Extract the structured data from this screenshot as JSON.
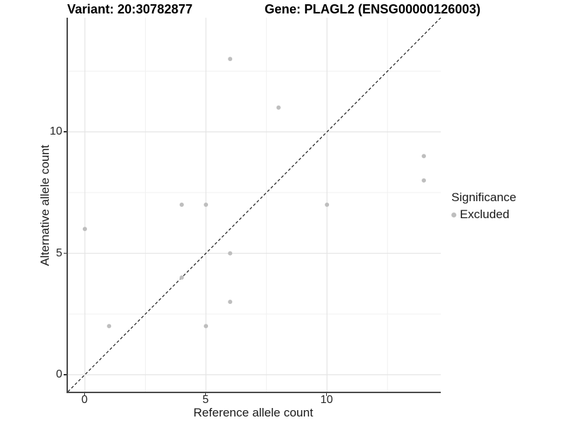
{
  "chart_data": {
    "type": "scatter",
    "titles": {
      "variant": "Variant: 20:30782877",
      "gene": "Gene: PLAGL2 (ENSG00000126003)"
    },
    "xlabel": "Reference allele count",
    "ylabel": "Alternative allele count",
    "xlim": [
      -0.7,
      14.7
    ],
    "ylim": [
      -0.7,
      14.7
    ],
    "axis_tick_values": [
      0,
      5,
      10
    ],
    "axis_tick_labels": [
      "0",
      "5",
      "10"
    ],
    "minor_gridline_values": [
      2.5,
      7.5,
      12.5
    ],
    "grid": true,
    "identity_line": {
      "style": "dashed",
      "slope": 1,
      "intercept": 0,
      "color": "#1a1a1a"
    },
    "series": [
      {
        "name": "Excluded",
        "color": "#bebebe",
        "points": [
          [
            0,
            6
          ],
          [
            1,
            2
          ],
          [
            4,
            4
          ],
          [
            4,
            7
          ],
          [
            5,
            2
          ],
          [
            5,
            7
          ],
          [
            6,
            3
          ],
          [
            6,
            5
          ],
          [
            6,
            13
          ],
          [
            8,
            11
          ],
          [
            10,
            7
          ],
          [
            14,
            8
          ],
          [
            14,
            9
          ]
        ]
      }
    ],
    "legend": {
      "title": "Significance",
      "position": "right",
      "items": [
        {
          "label": "Excluded",
          "color": "#bebebe"
        }
      ]
    },
    "colors": {
      "background": "#ffffff",
      "major_grid": "#e4e4e4",
      "minor_grid": "#f1f1f1",
      "axis_line": "#4a4a4a",
      "point": "#bebebe",
      "text": "#1a1a1a"
    }
  }
}
